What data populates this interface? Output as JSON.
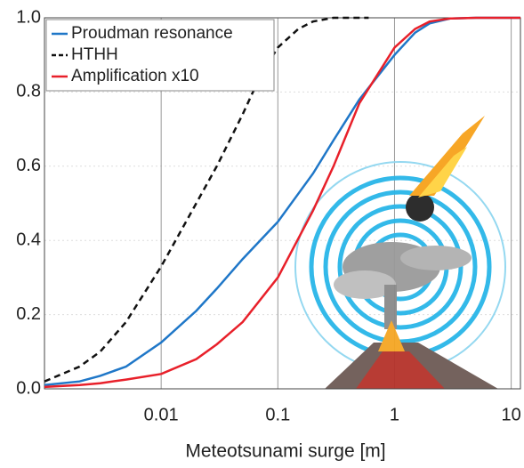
{
  "chart_data": {
    "type": "line",
    "xlabel": "Meteotsunami surge [m]",
    "xscale": "log",
    "xlim": [
      0.001,
      12
    ],
    "xticks": [
      0.01,
      0.1,
      1,
      10
    ],
    "ylim": [
      0,
      1
    ],
    "yticks": [
      {
        "value": 0,
        "label": "0.0"
      },
      0.2,
      0.4,
      0.6,
      0.8,
      {
        "value": 1,
        "label": "1.0"
      }
    ],
    "grid": true,
    "legend": "upper left",
    "series": [
      {
        "name": "Proudman resonance",
        "color": "#1f77c8",
        "dash": false,
        "x": [
          0.001,
          0.002,
          0.003,
          0.005,
          0.01,
          0.02,
          0.03,
          0.05,
          0.1,
          0.2,
          0.3,
          0.5,
          1,
          1.5,
          2,
          3,
          5,
          12
        ],
        "values": [
          0.01,
          0.02,
          0.035,
          0.06,
          0.125,
          0.21,
          0.27,
          0.35,
          0.45,
          0.58,
          0.67,
          0.78,
          0.9,
          0.96,
          0.985,
          0.998,
          1.0,
          1.0
        ]
      },
      {
        "name": "HTHH",
        "color": "#111111",
        "dash": true,
        "x": [
          0.001,
          0.002,
          0.003,
          0.005,
          0.01,
          0.02,
          0.03,
          0.05,
          0.07,
          0.1,
          0.15,
          0.2,
          0.3,
          0.6
        ],
        "values": [
          0.02,
          0.06,
          0.1,
          0.18,
          0.33,
          0.5,
          0.6,
          0.74,
          0.84,
          0.92,
          0.97,
          0.99,
          1.0,
          1.0
        ]
      },
      {
        "name": "Amplification x10",
        "color": "#e8202a",
        "dash": false,
        "x": [
          0.001,
          0.002,
          0.003,
          0.005,
          0.01,
          0.02,
          0.03,
          0.05,
          0.1,
          0.2,
          0.3,
          0.5,
          1,
          1.5,
          2,
          3,
          5,
          12
        ],
        "values": [
          0.005,
          0.01,
          0.015,
          0.025,
          0.04,
          0.08,
          0.12,
          0.18,
          0.3,
          0.48,
          0.6,
          0.77,
          0.92,
          0.97,
          0.99,
          0.998,
          1.0,
          1.0
        ]
      }
    ]
  }
}
